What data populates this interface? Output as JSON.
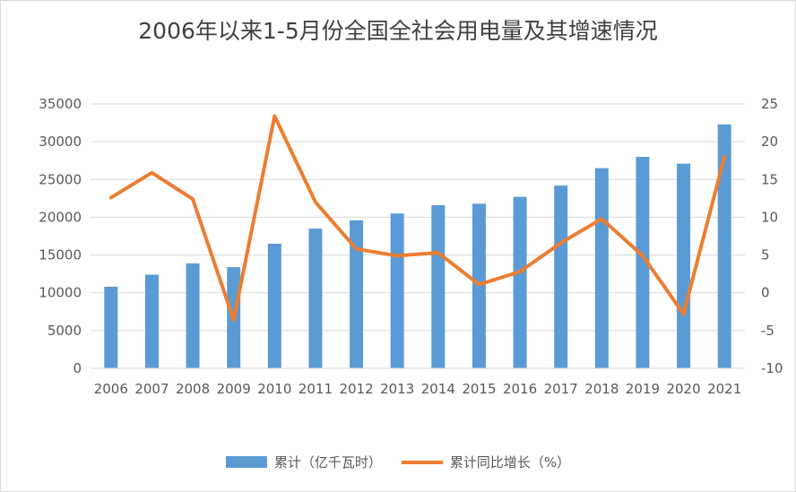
{
  "chart_data": {
    "type": "bar",
    "title": "2006年以来1-5月份全国全社会用电量及其增速情况",
    "categories": [
      "2006",
      "2007",
      "2008",
      "2009",
      "2010",
      "2011",
      "2012",
      "2013",
      "2014",
      "2015",
      "2016",
      "2017",
      "2018",
      "2019",
      "2020",
      "2021"
    ],
    "series": [
      {
        "name": "累计（亿千瓦时）",
        "type": "bar",
        "axis": "left",
        "color": "#5b9bd5",
        "values": [
          10800,
          12400,
          13900,
          13400,
          16500,
          18500,
          19600,
          20500,
          21600,
          21800,
          22700,
          24200,
          26500,
          28000,
          27100,
          32300
        ]
      },
      {
        "name": "累计同比增长（%）",
        "type": "line",
        "axis": "right",
        "color": "#ed7d31",
        "values": [
          12.6,
          15.9,
          12.4,
          -3.6,
          23.4,
          12.0,
          5.8,
          4.9,
          5.3,
          1.1,
          2.8,
          6.6,
          9.8,
          4.9,
          -2.8,
          18.0
        ]
      }
    ],
    "yleft": {
      "ylim": [
        0,
        35000
      ],
      "ticks": [
        "0",
        "5000",
        "10000",
        "15000",
        "20000",
        "25000",
        "30000",
        "35000"
      ]
    },
    "yright": {
      "ylim": [
        -10,
        25
      ],
      "ticks": [
        "-10",
        "-5",
        "0",
        "5",
        "10",
        "15",
        "20",
        "25"
      ]
    },
    "grid": true,
    "legend_position": "bottom"
  }
}
